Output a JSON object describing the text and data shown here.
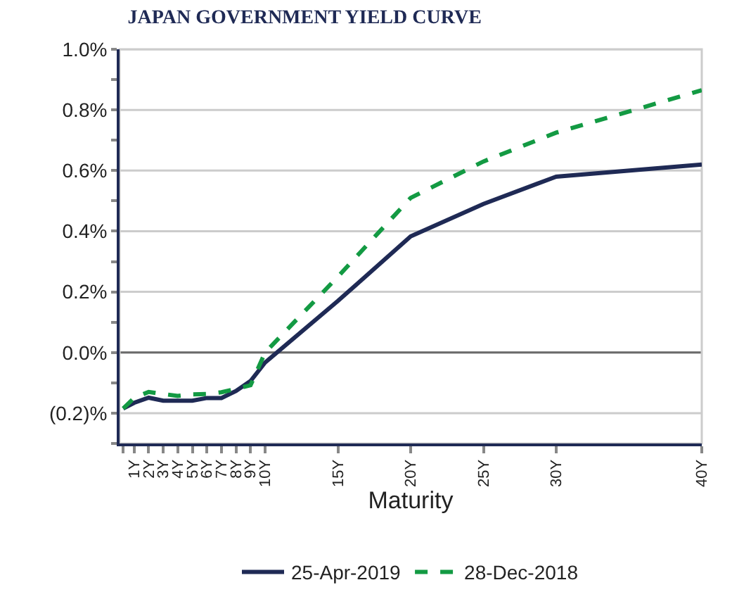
{
  "chart_data": {
    "type": "line",
    "title": "JAPAN GOVERNMENT YIELD CURVE",
    "xlabel": "Maturity",
    "x": [
      0.25,
      1,
      2,
      3,
      4,
      5,
      6,
      7,
      8,
      9,
      10,
      15,
      20,
      25,
      30,
      40
    ],
    "series": [
      {
        "name": "25-Apr-2019",
        "color": "#1f2a55",
        "line_style": "solid",
        "values": [
          -0.185,
          -0.166,
          -0.149,
          -0.159,
          -0.159,
          -0.159,
          -0.15,
          -0.15,
          -0.127,
          -0.094,
          -0.033,
          0.17,
          0.383,
          0.49,
          0.58,
          0.62
        ]
      },
      {
        "name": "28-Dec-2018",
        "color": "#139a43",
        "line_style": "dashed",
        "values": [
          -0.185,
          -0.15,
          -0.13,
          -0.137,
          -0.143,
          -0.138,
          -0.137,
          -0.131,
          -0.12,
          -0.108,
          0.0,
          0.25,
          0.51,
          0.63,
          0.725,
          0.865
        ]
      }
    ],
    "xlim": [
      0,
      40
    ],
    "xticks": [
      {
        "value": 0.25,
        "label": null
      },
      {
        "value": 1,
        "label": "1Y"
      },
      {
        "value": 2,
        "label": "2Y"
      },
      {
        "value": 3,
        "label": "3Y"
      },
      {
        "value": 4,
        "label": "4Y"
      },
      {
        "value": 5,
        "label": "5Y"
      },
      {
        "value": 6,
        "label": "6Y"
      },
      {
        "value": 7,
        "label": "7Y"
      },
      {
        "value": 8,
        "label": "8Y"
      },
      {
        "value": 9,
        "label": "9Y"
      },
      {
        "value": 10,
        "label": "10Y"
      },
      {
        "value": 15,
        "label": "15Y"
      },
      {
        "value": 20,
        "label": "20Y"
      },
      {
        "value": 25,
        "label": "25Y"
      },
      {
        "value": 30,
        "label": "30Y"
      },
      {
        "value": 40,
        "label": "40Y"
      }
    ],
    "ylim": [
      -0.3,
      1.0
    ],
    "yticks": [
      {
        "value": -0.3,
        "label": null
      },
      {
        "value": -0.2,
        "label": "(0.2)%"
      },
      {
        "value": -0.1,
        "label": null
      },
      {
        "value": 0.0,
        "label": "0.0%"
      },
      {
        "value": 0.1,
        "label": null
      },
      {
        "value": 0.2,
        "label": "0.2%"
      },
      {
        "value": 0.3,
        "label": null
      },
      {
        "value": 0.4,
        "label": "0.4%"
      },
      {
        "value": 0.5,
        "label": null
      },
      {
        "value": 0.6,
        "label": "0.6%"
      },
      {
        "value": 0.7,
        "label": null
      },
      {
        "value": 0.8,
        "label": "0.8%"
      },
      {
        "value": 0.9,
        "label": null
      },
      {
        "value": 1.0,
        "label": "1.0%"
      }
    ],
    "ref_lines": [
      {
        "axis": "y",
        "value": 0.0,
        "color": "#6b6b6b"
      }
    ],
    "grid": "y",
    "legend": "bottom",
    "marker": "none"
  }
}
